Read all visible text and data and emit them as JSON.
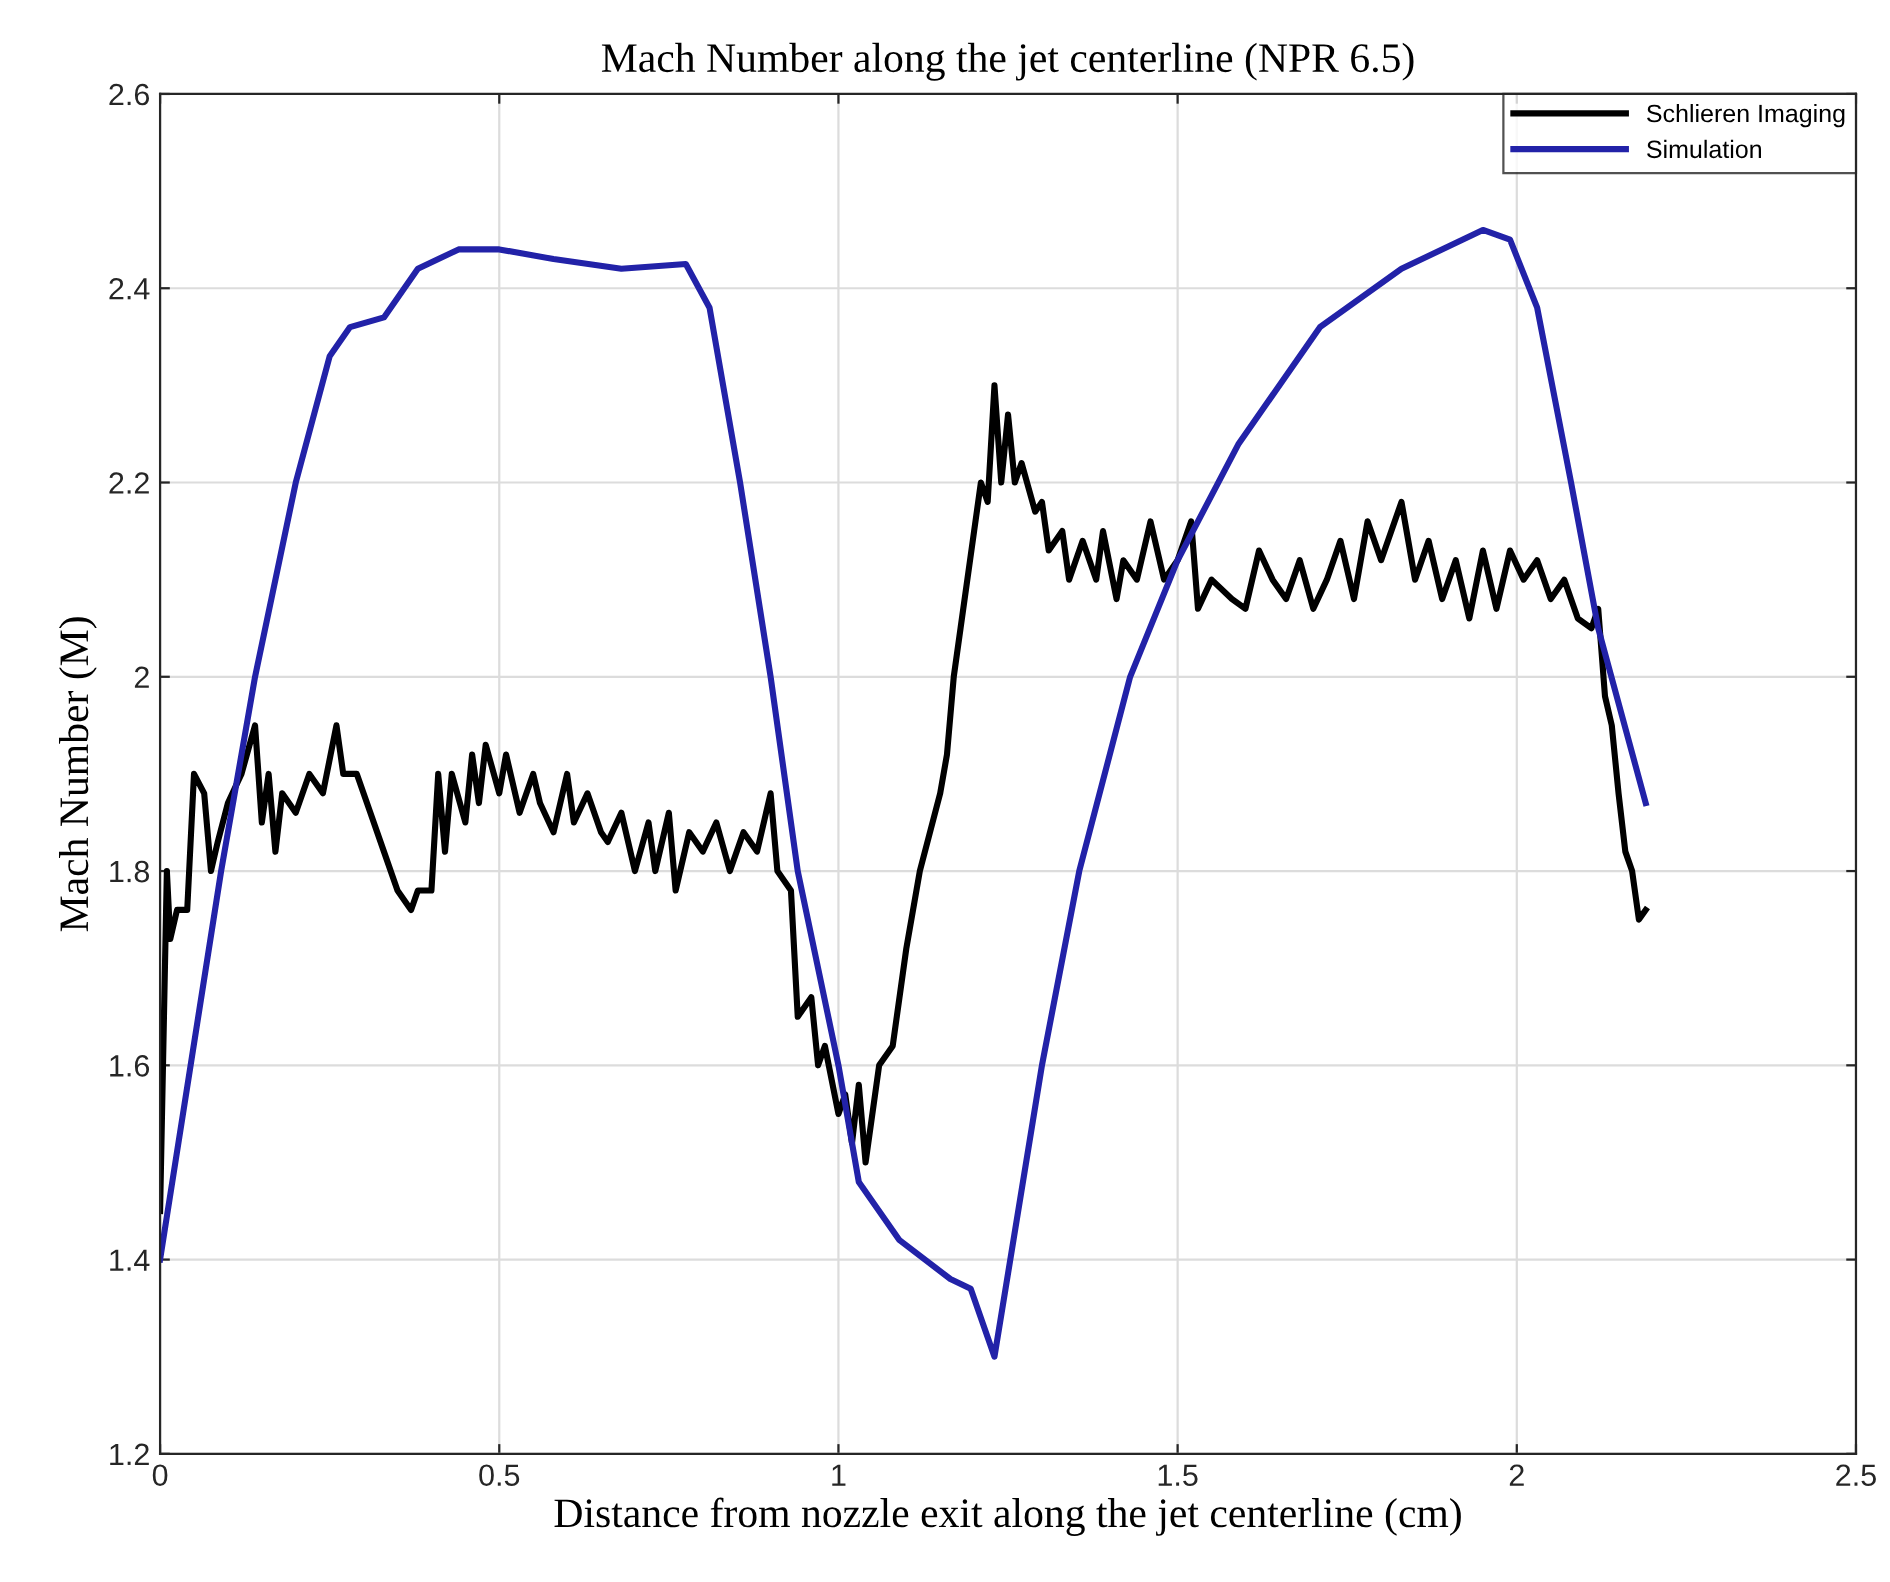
{
  "chart_data": {
    "type": "line",
    "title": "Mach Number along the jet centerline (NPR 6.5)",
    "xlabel": "Distance from nozzle exit along the jet centerline (cm)",
    "ylabel": "Mach Number (M)",
    "xlim": [
      0,
      2.5
    ],
    "xticks": [
      0,
      0.5,
      1,
      1.5,
      2,
      2.5
    ],
    "ylim": [
      1.2,
      2.6
    ],
    "yticks": [
      1.2,
      1.4,
      1.6,
      1.8,
      2,
      2.2,
      2.4,
      2.6
    ],
    "grid": true,
    "legend": "top right",
    "line_style": "solid",
    "marker": "none",
    "series": [
      {
        "name": "Schlieren Imaging",
        "color": "#000000",
        "x": [
          0.0,
          0.01,
          0.015,
          0.025,
          0.04,
          0.05,
          0.065,
          0.075,
          0.085,
          0.1,
          0.12,
          0.14,
          0.15,
          0.16,
          0.17,
          0.18,
          0.2,
          0.22,
          0.24,
          0.26,
          0.27,
          0.29,
          0.31,
          0.33,
          0.35,
          0.37,
          0.38,
          0.4,
          0.41,
          0.42,
          0.43,
          0.45,
          0.46,
          0.47,
          0.48,
          0.5,
          0.51,
          0.53,
          0.55,
          0.56,
          0.58,
          0.6,
          0.61,
          0.63,
          0.65,
          0.66,
          0.68,
          0.7,
          0.72,
          0.73,
          0.75,
          0.76,
          0.78,
          0.8,
          0.82,
          0.84,
          0.86,
          0.88,
          0.9,
          0.91,
          0.93,
          0.94,
          0.96,
          0.97,
          0.98,
          1.0,
          1.01,
          1.02,
          1.03,
          1.04,
          1.06,
          1.08,
          1.1,
          1.12,
          1.15,
          1.16,
          1.17,
          1.18,
          1.2,
          1.21,
          1.22,
          1.23,
          1.24,
          1.25,
          1.26,
          1.27,
          1.29,
          1.3,
          1.31,
          1.33,
          1.34,
          1.36,
          1.38,
          1.39,
          1.41,
          1.42,
          1.44,
          1.46,
          1.48,
          1.5,
          1.52,
          1.53,
          1.55,
          1.58,
          1.6,
          1.62,
          1.64,
          1.66,
          1.68,
          1.7,
          1.72,
          1.74,
          1.76,
          1.78,
          1.8,
          1.83,
          1.85,
          1.87,
          1.89,
          1.91,
          1.93,
          1.95,
          1.97,
          1.99,
          2.01,
          2.03,
          2.05,
          2.07,
          2.09,
          2.11,
          2.12,
          2.13,
          2.14,
          2.15,
          2.16,
          2.17,
          2.18,
          2.19
        ],
        "values": [
          1.45,
          1.8,
          1.73,
          1.76,
          1.76,
          1.9,
          1.88,
          1.8,
          1.83,
          1.87,
          1.9,
          1.95,
          1.85,
          1.9,
          1.82,
          1.88,
          1.86,
          1.9,
          1.88,
          1.95,
          1.9,
          1.9,
          1.86,
          1.82,
          1.78,
          1.76,
          1.78,
          1.78,
          1.9,
          1.82,
          1.9,
          1.85,
          1.92,
          1.87,
          1.93,
          1.88,
          1.92,
          1.86,
          1.9,
          1.87,
          1.84,
          1.9,
          1.85,
          1.88,
          1.84,
          1.83,
          1.86,
          1.8,
          1.85,
          1.8,
          1.86,
          1.78,
          1.84,
          1.82,
          1.85,
          1.8,
          1.84,
          1.82,
          1.88,
          1.8,
          1.78,
          1.65,
          1.67,
          1.6,
          1.62,
          1.55,
          1.57,
          1.52,
          1.58,
          1.5,
          1.6,
          1.62,
          1.72,
          1.8,
          1.88,
          1.92,
          2.0,
          2.05,
          2.15,
          2.2,
          2.18,
          2.3,
          2.2,
          2.27,
          2.2,
          2.22,
          2.17,
          2.18,
          2.13,
          2.15,
          2.1,
          2.14,
          2.1,
          2.15,
          2.08,
          2.12,
          2.1,
          2.16,
          2.1,
          2.12,
          2.16,
          2.07,
          2.1,
          2.08,
          2.07,
          2.13,
          2.1,
          2.08,
          2.12,
          2.07,
          2.1,
          2.14,
          2.08,
          2.16,
          2.12,
          2.18,
          2.1,
          2.14,
          2.08,
          2.12,
          2.06,
          2.13,
          2.07,
          2.13,
          2.1,
          2.12,
          2.08,
          2.1,
          2.06,
          2.05,
          2.07,
          1.98,
          1.95,
          1.88,
          1.82,
          1.8,
          1.75,
          1.76
        ]
      },
      {
        "name": "Simulation",
        "color": "#2222a8",
        "x": [
          0.0,
          0.09,
          0.14,
          0.2,
          0.25,
          0.28,
          0.33,
          0.38,
          0.44,
          0.5,
          0.58,
          0.68,
          0.775,
          0.81,
          0.855,
          0.9,
          0.94,
          1.0,
          1.03,
          1.09,
          1.165,
          1.195,
          1.23,
          1.3,
          1.355,
          1.43,
          1.5,
          1.59,
          1.71,
          1.83,
          1.95,
          1.99,
          2.03,
          2.08,
          2.12,
          2.19
        ],
        "values": [
          1.4,
          1.8,
          2.0,
          2.2,
          2.33,
          2.36,
          2.37,
          2.42,
          2.44,
          2.44,
          2.43,
          2.42,
          2.425,
          2.38,
          2.2,
          2.0,
          1.8,
          1.6,
          1.48,
          1.42,
          1.38,
          1.37,
          1.3,
          1.6,
          1.8,
          2.0,
          2.12,
          2.24,
          2.36,
          2.42,
          2.46,
          2.45,
          2.38,
          2.2,
          2.05,
          1.87
        ]
      }
    ]
  }
}
